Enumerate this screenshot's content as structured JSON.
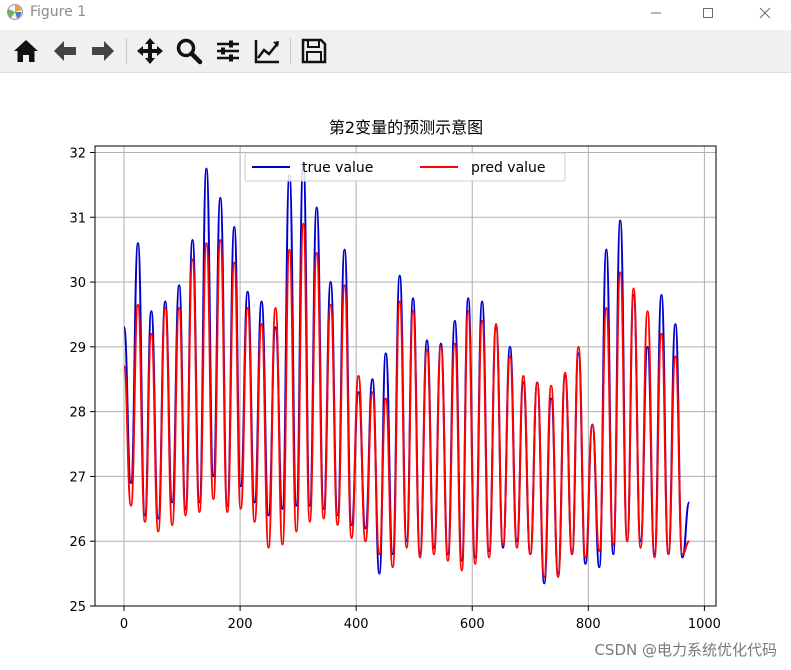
{
  "window": {
    "title": "Figure 1",
    "icons": {
      "app": "matplotlib-icon",
      "minimize": "minimize-icon",
      "maximize": "maximize-icon",
      "close": "close-icon"
    }
  },
  "toolbar": {
    "items": [
      {
        "name": "home-button",
        "icon": "home-icon"
      },
      {
        "name": "back-button",
        "icon": "arrow-left-icon"
      },
      {
        "name": "forward-button",
        "icon": "arrow-right-icon"
      },
      {
        "name": "pan-button",
        "icon": "move-icon"
      },
      {
        "name": "zoom-button",
        "icon": "magnifier-icon"
      },
      {
        "name": "configure-subplots-button",
        "icon": "sliders-icon"
      },
      {
        "name": "edit-axis-button",
        "icon": "line-chart-icon"
      },
      {
        "name": "save-button",
        "icon": "floppy-disk-icon"
      }
    ]
  },
  "chart_data": {
    "type": "line",
    "title": "第2变量的预测示意图",
    "xlabel": "",
    "ylabel": "",
    "xlim": [
      -50,
      1020
    ],
    "ylim": [
      25,
      32.1
    ],
    "xticks": [
      0,
      200,
      400,
      600,
      800,
      1000
    ],
    "yticks": [
      25,
      26,
      27,
      28,
      29,
      30,
      31,
      32
    ],
    "grid": true,
    "legend": {
      "placement": "upper-center",
      "columns": 2
    },
    "series": [
      {
        "name": "true value",
        "color": "#0000cc",
        "peaks": [
          [
            0,
            29.3
          ],
          [
            24,
            30.6
          ],
          [
            47,
            29.55
          ],
          [
            71,
            29.7
          ],
          [
            95,
            29.95
          ],
          [
            118,
            30.65
          ],
          [
            142,
            31.75
          ],
          [
            166,
            31.3
          ],
          [
            190,
            30.85
          ],
          [
            213,
            29.85
          ],
          [
            237,
            29.7
          ],
          [
            261,
            29.3
          ],
          [
            285,
            31.65
          ],
          [
            309,
            31.85
          ],
          [
            332,
            31.15
          ],
          [
            356,
            30.0
          ],
          [
            380,
            30.5
          ],
          [
            404,
            28.3
          ],
          [
            428,
            28.5
          ],
          [
            451,
            28.9
          ],
          [
            475,
            30.1
          ],
          [
            498,
            29.75
          ],
          [
            522,
            29.1
          ],
          [
            546,
            29.05
          ],
          [
            570,
            29.4
          ],
          [
            593,
            29.75
          ],
          [
            617,
            29.7
          ],
          [
            641,
            29.3
          ],
          [
            665,
            29.0
          ],
          [
            688,
            28.45
          ],
          [
            712,
            28.45
          ],
          [
            736,
            28.2
          ],
          [
            760,
            28.55
          ],
          [
            783,
            28.9
          ],
          [
            807,
            27.8
          ],
          [
            831,
            30.5
          ],
          [
            855,
            30.95
          ],
          [
            878,
            29.8
          ],
          [
            902,
            29.0
          ],
          [
            926,
            29.8
          ],
          [
            950,
            29.35
          ]
        ],
        "troughs": [
          [
            12,
            26.9
          ],
          [
            36,
            26.4
          ],
          [
            59,
            26.35
          ],
          [
            83,
            26.6
          ],
          [
            106,
            26.5
          ],
          [
            130,
            26.6
          ],
          [
            154,
            27.0
          ],
          [
            178,
            26.55
          ],
          [
            201,
            26.85
          ],
          [
            225,
            26.6
          ],
          [
            249,
            26.4
          ],
          [
            273,
            26.5
          ],
          [
            297,
            26.55
          ],
          [
            320,
            26.55
          ],
          [
            344,
            26.5
          ],
          [
            368,
            26.4
          ],
          [
            392,
            26.25
          ],
          [
            416,
            26.2
          ],
          [
            440,
            25.5
          ],
          [
            463,
            25.8
          ],
          [
            487,
            26.0
          ],
          [
            510,
            25.8
          ],
          [
            534,
            25.9
          ],
          [
            558,
            25.8
          ],
          [
            582,
            25.7
          ],
          [
            605,
            25.75
          ],
          [
            629,
            25.85
          ],
          [
            653,
            25.9
          ],
          [
            677,
            26.0
          ],
          [
            700,
            25.8
          ],
          [
            724,
            25.35
          ],
          [
            748,
            25.5
          ],
          [
            772,
            25.8
          ],
          [
            795,
            25.65
          ],
          [
            819,
            25.6
          ],
          [
            843,
            25.8
          ],
          [
            867,
            26.0
          ],
          [
            890,
            26.0
          ],
          [
            914,
            25.8
          ],
          [
            938,
            25.8
          ],
          [
            962,
            25.75
          ]
        ],
        "end": [
          974,
          26.6
        ]
      },
      {
        "name": "pred value",
        "color": "#ff0000",
        "peaks": [
          [
            0,
            28.7
          ],
          [
            24,
            29.65
          ],
          [
            47,
            29.2
          ],
          [
            71,
            29.6
          ],
          [
            95,
            29.6
          ],
          [
            118,
            30.35
          ],
          [
            142,
            30.6
          ],
          [
            166,
            30.65
          ],
          [
            190,
            30.3
          ],
          [
            213,
            29.6
          ],
          [
            237,
            29.35
          ],
          [
            261,
            29.6
          ],
          [
            285,
            30.5
          ],
          [
            309,
            30.9
          ],
          [
            332,
            30.45
          ],
          [
            356,
            29.65
          ],
          [
            380,
            29.95
          ],
          [
            404,
            28.55
          ],
          [
            428,
            28.3
          ],
          [
            451,
            28.2
          ],
          [
            475,
            29.7
          ],
          [
            498,
            29.55
          ],
          [
            522,
            28.95
          ],
          [
            546,
            29.0
          ],
          [
            570,
            29.05
          ],
          [
            593,
            29.55
          ],
          [
            617,
            29.4
          ],
          [
            641,
            29.35
          ],
          [
            665,
            28.85
          ],
          [
            688,
            28.55
          ],
          [
            712,
            28.45
          ],
          [
            736,
            28.4
          ],
          [
            760,
            28.6
          ],
          [
            783,
            29.0
          ],
          [
            807,
            27.8
          ],
          [
            831,
            29.6
          ],
          [
            855,
            30.15
          ],
          [
            878,
            29.9
          ],
          [
            902,
            29.55
          ],
          [
            926,
            29.2
          ],
          [
            950,
            28.85
          ]
        ],
        "troughs": [
          [
            12,
            26.55
          ],
          [
            36,
            26.3
          ],
          [
            59,
            26.15
          ],
          [
            83,
            26.25
          ],
          [
            106,
            26.4
          ],
          [
            130,
            26.45
          ],
          [
            154,
            26.65
          ],
          [
            178,
            26.45
          ],
          [
            201,
            26.5
          ],
          [
            225,
            26.3
          ],
          [
            249,
            25.9
          ],
          [
            273,
            25.95
          ],
          [
            297,
            26.15
          ],
          [
            320,
            26.3
          ],
          [
            344,
            26.35
          ],
          [
            368,
            26.25
          ],
          [
            392,
            26.05
          ],
          [
            416,
            26.0
          ],
          [
            440,
            25.8
          ],
          [
            463,
            25.6
          ],
          [
            487,
            25.9
          ],
          [
            510,
            25.75
          ],
          [
            534,
            25.8
          ],
          [
            558,
            25.7
          ],
          [
            582,
            25.55
          ],
          [
            605,
            25.65
          ],
          [
            629,
            25.75
          ],
          [
            653,
            25.95
          ],
          [
            677,
            25.9
          ],
          [
            700,
            25.8
          ],
          [
            724,
            25.45
          ],
          [
            748,
            25.45
          ],
          [
            772,
            25.8
          ],
          [
            795,
            25.75
          ],
          [
            819,
            25.85
          ],
          [
            843,
            25.95
          ],
          [
            867,
            26.0
          ],
          [
            890,
            25.9
          ],
          [
            914,
            25.75
          ],
          [
            938,
            25.8
          ],
          [
            962,
            25.8
          ]
        ],
        "end": [
          974,
          26.0
        ]
      }
    ]
  },
  "watermark": "CSDN @电力系统优化代码"
}
